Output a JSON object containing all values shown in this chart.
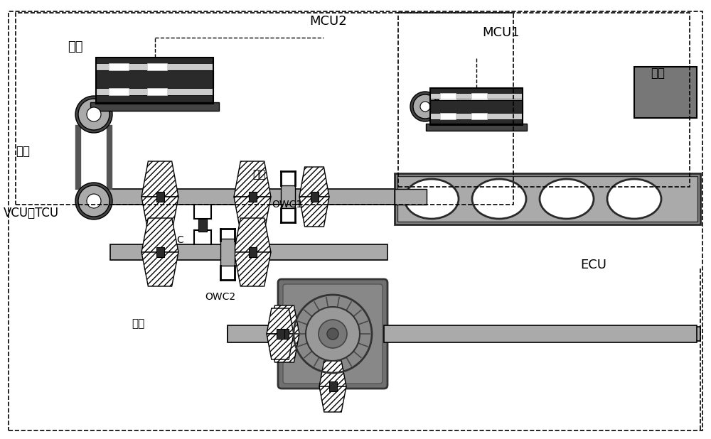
{
  "labels": {
    "motor": "电机",
    "chain": "钉条",
    "first_gear": "一档",
    "owc1": "OWC1",
    "owc2": "OWC2",
    "clutch": "C",
    "second_gear": "二档",
    "mcu2": "MCU2",
    "mcu1": "MCU1",
    "ecu": "ECU",
    "battery": "电池",
    "vcu_tcu": "VCU和TCU"
  },
  "colors": {
    "dark_gray": "#2a2a2a",
    "med_dark": "#444444",
    "medium_gray": "#666666",
    "light_gray": "#aaaaaa",
    "very_light_gray": "#cccccc",
    "silver": "#b8b8b8",
    "white": "#ffffff",
    "black": "#000000",
    "engine_gray": "#888888",
    "battery_gray": "#777777",
    "hatch_fill": "#ffffff"
  },
  "figsize": [
    10.0,
    6.18
  ],
  "dpi": 100
}
